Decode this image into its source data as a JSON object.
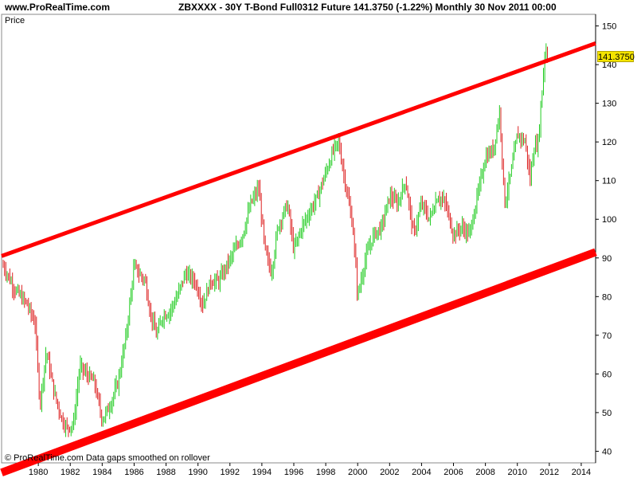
{
  "header": {
    "site": "www.ProRealTime.com",
    "title": "ZBXXXX - 30Y T-Bond Full0312 Future    141.3750 (-1.22%)    Monthly  30 Nov 2011 00:00"
  },
  "price_label": "Price",
  "footer_note": "© ProRealTime.com  Data gaps smoothed on rollover",
  "last_price": "141.3750",
  "colors": {
    "up": "#22cc22",
    "down": "#dd2222",
    "channel": "#ff0000",
    "badge": "#f4e400"
  },
  "chart_data": {
    "type": "line",
    "title": "ZBXXXX - 30Y T-Bond Full0312 Future",
    "xlabel": "",
    "ylabel": "Price",
    "x_ticks": [
      "1980",
      "1982",
      "1984",
      "1986",
      "1988",
      "1990",
      "1992",
      "1994",
      "1996",
      "1998",
      "2000",
      "2002",
      "2004",
      "2006",
      "2008",
      "2010",
      "2012",
      "2014"
    ],
    "y_ticks": [
      40,
      50,
      60,
      70,
      80,
      90,
      100,
      110,
      120,
      130,
      140,
      150
    ],
    "xlim": [
      1977.7,
      2014.9
    ],
    "ylim": [
      37,
      153
    ],
    "grid": false,
    "series": [
      {
        "values_x": [
          1977.8,
          1978.5,
          1979.3,
          1979.8,
          1980.1,
          1980.5,
          1981.0,
          1981.5,
          1981.8,
          1982.2,
          1982.6,
          1983.0,
          1983.5,
          1984.0,
          1984.5,
          1985.0,
          1985.5,
          1986.0,
          1986.3,
          1986.7,
          1987.0,
          1987.4,
          1987.8,
          1988.2,
          1988.7,
          1989.2,
          1989.8,
          1990.3,
          1990.8,
          1991.3,
          1991.8,
          1992.3,
          1992.8,
          1993.3,
          1993.8,
          1994.2,
          1994.6,
          1995.0,
          1995.6,
          1996.0,
          1996.5,
          1997.0,
          1997.5,
          1998.0,
          1998.5,
          1998.8,
          1999.2,
          1999.7,
          2000.0,
          2000.5,
          2001.0,
          2001.5,
          2002.0,
          2002.5,
          2003.0,
          2003.5,
          2004.0,
          2004.5,
          2005.0,
          2005.5,
          2006.0,
          2006.5,
          2007.0,
          2007.5,
          2008.0,
          2008.5,
          2008.9,
          2009.2,
          2009.6,
          2010.0,
          2010.5,
          2010.8,
          2011.0,
          2011.3,
          2011.6,
          2011.75,
          2011.9
        ],
        "values_y": [
          88,
          82,
          78,
          73,
          52,
          66,
          55,
          48,
          46,
          47,
          62,
          60,
          58,
          48,
          52,
          58,
          70,
          88,
          86,
          84,
          76,
          70,
          75,
          76,
          80,
          86,
          84,
          78,
          84,
          84,
          88,
          92,
          96,
          104,
          108,
          92,
          86,
          98,
          104,
          92,
          98,
          102,
          106,
          112,
          118,
          120,
          110,
          98,
          80,
          90,
          96,
          98,
          106,
          104,
          110,
          96,
          104,
          100,
          106,
          104,
          96,
          98,
          96,
          106,
          116,
          118,
          128,
          104,
          112,
          122,
          120,
          110,
          118,
          120,
          136,
          145,
          141.375
        ]
      }
    ],
    "channel_lines": [
      {
        "name": "upper",
        "points": [
          [
            1977.7,
            90.5
          ],
          [
            2014.9,
            145.5
          ]
        ]
      },
      {
        "name": "lower",
        "points": [
          [
            1977.7,
            34.5
          ],
          [
            2014.9,
            91.5
          ]
        ]
      }
    ]
  }
}
